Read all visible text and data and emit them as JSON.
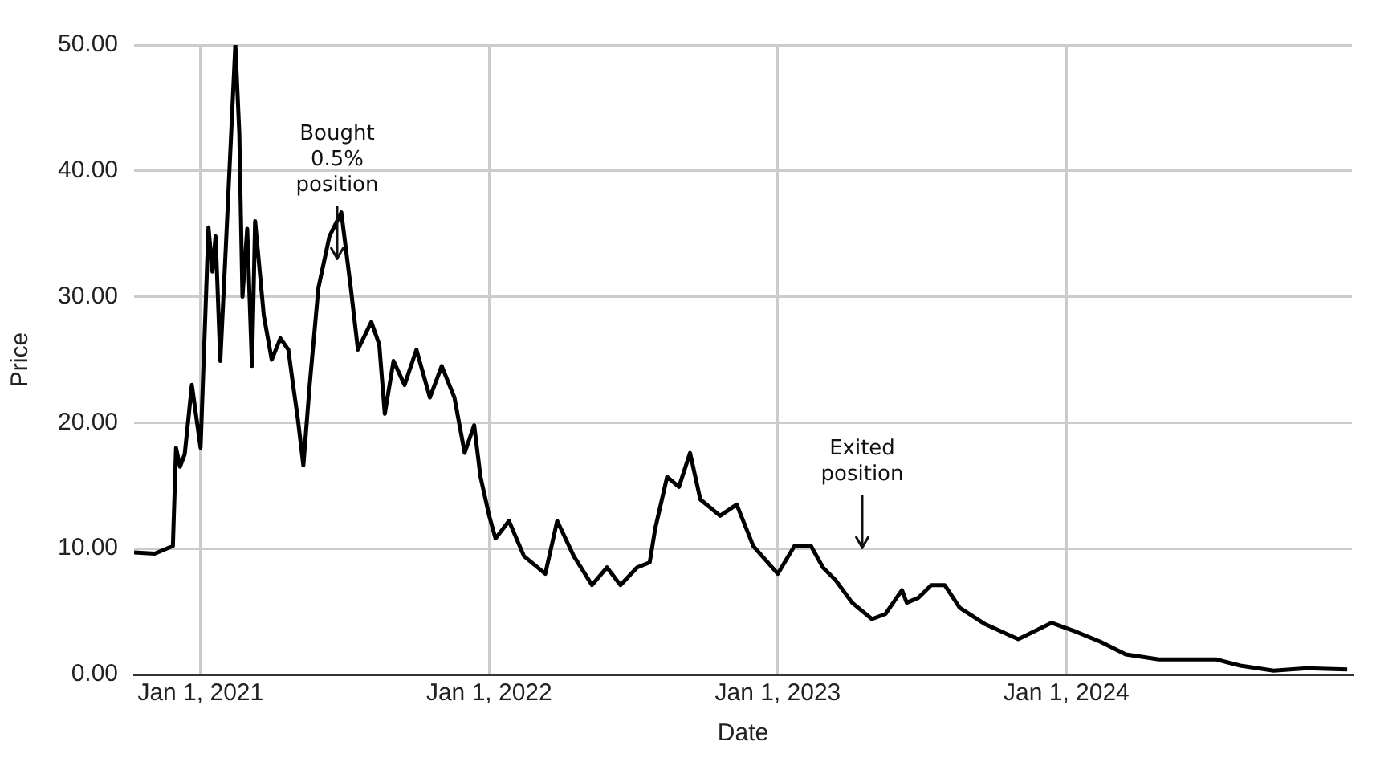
{
  "chart_data": {
    "type": "line",
    "xlabel": "Date",
    "ylabel": "Price",
    "x": [
      "2020-10-09",
      "2020-11-04",
      "2020-11-27",
      "2020-12-01",
      "2020-12-06",
      "2020-12-12",
      "2020-12-21",
      "2021-01-01",
      "2021-01-11",
      "2021-01-16",
      "2021-01-20",
      "2021-01-26",
      "2021-02-02",
      "2021-02-08",
      "2021-02-14",
      "2021-02-19",
      "2021-02-23",
      "2021-03-01",
      "2021-03-07",
      "2021-03-11",
      "2021-03-22",
      "2021-04-01",
      "2021-04-12",
      "2021-04-22",
      "2021-04-28",
      "2021-05-04",
      "2021-05-11",
      "2021-05-19",
      "2021-05-30",
      "2021-06-13",
      "2021-06-28",
      "2021-07-10",
      "2021-07-19",
      "2021-08-05",
      "2021-08-15",
      "2021-08-22",
      "2021-09-02",
      "2021-09-16",
      "2021-10-01",
      "2021-10-18",
      "2021-11-02",
      "2021-11-18",
      "2021-12-01",
      "2021-12-13",
      "2021-12-21",
      "2022-01-01",
      "2022-01-09",
      "2022-01-26",
      "2022-02-14",
      "2022-03-13",
      "2022-03-28",
      "2022-04-18",
      "2022-05-11",
      "2022-05-30",
      "2022-06-16",
      "2022-07-07",
      "2022-07-23",
      "2022-07-30",
      "2022-08-14",
      "2022-08-29",
      "2022-09-12",
      "2022-09-25",
      "2022-10-20",
      "2022-11-10",
      "2022-12-01",
      "2023-01-01",
      "2023-01-22",
      "2023-02-12",
      "2023-02-27",
      "2023-03-15",
      "2023-04-05",
      "2023-04-30",
      "2023-05-17",
      "2023-06-07",
      "2023-06-13",
      "2023-06-28",
      "2023-07-14",
      "2023-07-31",
      "2023-08-19",
      "2023-09-20",
      "2023-11-01",
      "2023-12-13",
      "2024-01-13",
      "2024-02-13",
      "2024-03-16",
      "2024-04-27",
      "2024-07-08",
      "2024-08-08",
      "2024-09-19",
      "2024-10-31",
      "2024-12-21"
    ],
    "series": [
      {
        "color": "#000000",
        "values": [
          9.7,
          9.6,
          10.2,
          18,
          16.5,
          17.5,
          23,
          18,
          35.5,
          32,
          34.8,
          24.9,
          34,
          42,
          50,
          43,
          30,
          35.4,
          24.5,
          36,
          28.5,
          25,
          26.7,
          25.8,
          23,
          20.3,
          16.6,
          23,
          30.7,
          34.8,
          36.7,
          30.7,
          25.8,
          28,
          26.2,
          20.7,
          24.9,
          23,
          25.8,
          22,
          24.5,
          22,
          17.6,
          19.8,
          15.7,
          12.6,
          10.8,
          12.2,
          9.4,
          8,
          12.2,
          9.4,
          7.1,
          8.5,
          7.1,
          8.5,
          8.9,
          11.6,
          15.7,
          14.9,
          17.6,
          13.9,
          12.6,
          13.5,
          10.2,
          8,
          10.2,
          10.2,
          8.5,
          7.5,
          5.7,
          4.4,
          4.8,
          6.7,
          5.7,
          6.1,
          7.1,
          7.1,
          5.3,
          4,
          2.8,
          4.1,
          3.4,
          2.6,
          1.6,
          1.2,
          1.2,
          0.7,
          0.3,
          0.5,
          0.4
        ]
      }
    ],
    "xlim": [
      "2020-10-09",
      "2024-12-27"
    ],
    "xticks": [
      {
        "value": "2021-01-01",
        "label": "Jan 1, 2021"
      },
      {
        "value": "2022-01-01",
        "label": "Jan 1, 2022"
      },
      {
        "value": "2023-01-01",
        "label": "Jan 1, 2023"
      },
      {
        "value": "2024-01-01",
        "label": "Jan 1, 2024"
      }
    ],
    "ylim": [
      0,
      50
    ],
    "yticks": [
      {
        "value": 0,
        "label": "0.00"
      },
      {
        "value": 10,
        "label": "10.00"
      },
      {
        "value": 20,
        "label": "20.00"
      },
      {
        "value": 30,
        "label": "30.00"
      },
      {
        "value": 40,
        "label": "40.00"
      },
      {
        "value": 50,
        "label": "50.00"
      }
    ],
    "grid": true,
    "annotations": [
      "Bought 0.5% position",
      "Exited position"
    ]
  }
}
